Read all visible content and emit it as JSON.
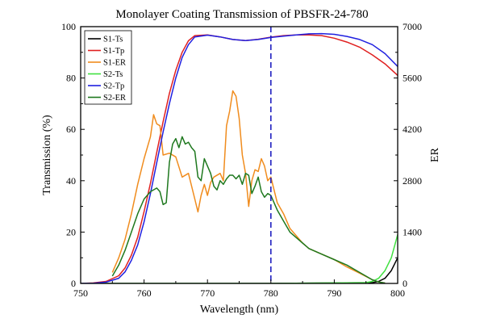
{
  "chart_data": {
    "type": "line",
    "title": "Monolayer Coating Transmission of PBSFR-24-780",
    "xlabel": "Wavelength (nm)",
    "ylabel": "Transmission (%)",
    "y2label": "ER",
    "xlim": [
      750,
      800
    ],
    "ylim": [
      0,
      100
    ],
    "y2lim": [
      0,
      7000
    ],
    "xticks": [
      "750",
      "760",
      "770",
      "780",
      "790",
      "800"
    ],
    "yticks": [
      "0",
      "20",
      "40",
      "60",
      "80",
      "100"
    ],
    "y2ticks": [
      "0",
      "1400",
      "2800",
      "4200",
      "5600",
      "7000"
    ],
    "grid": false,
    "legend_position": "top-left",
    "vline": {
      "x": 780,
      "color": "#2020c0",
      "style": "dashed"
    },
    "series": [
      {
        "name": "S1-Ts",
        "axis": "left",
        "color": "#000000",
        "x": [
          750,
          780,
          796,
          797,
          798,
          799,
          800
        ],
        "y": [
          0,
          0,
          0.3,
          0.8,
          2,
          5,
          10
        ]
      },
      {
        "name": "S1-Tp",
        "axis": "left",
        "color": "#e02020",
        "x": [
          750,
          752,
          754,
          756,
          757,
          758,
          759,
          760,
          761,
          762,
          763,
          764,
          765,
          766,
          767,
          768,
          770,
          772,
          774,
          776,
          778,
          780,
          782,
          784,
          786,
          788,
          790,
          792,
          794,
          796,
          798,
          800
        ],
        "y": [
          0,
          0.2,
          0.8,
          3,
          6,
          11,
          18,
          28,
          39,
          51,
          63,
          74,
          83,
          90,
          94.5,
          96.5,
          96.8,
          96,
          95,
          94.6,
          95.1,
          95.9,
          96.5,
          96.8,
          96.8,
          96.5,
          95.5,
          94,
          92,
          89,
          85.5,
          81
        ]
      },
      {
        "name": "S1-ER",
        "axis": "right",
        "color": "#f08c1e",
        "x": [
          755,
          756,
          757,
          758,
          759,
          760,
          761,
          761.5,
          762,
          762.5,
          763,
          764,
          765,
          766,
          767,
          768,
          768.5,
          769,
          769.5,
          770,
          770.5,
          771,
          772,
          772.5,
          773,
          773.5,
          774,
          774.5,
          775,
          775.5,
          776,
          776.5,
          777,
          777.5,
          778,
          778.5,
          779,
          779.5,
          780,
          781,
          782,
          783,
          784,
          785,
          786,
          788,
          790,
          792,
          794,
          796,
          797,
          798
        ],
        "y": [
          300,
          700,
          1200,
          1900,
          2700,
          3400,
          4000,
          4600,
          4350,
          4300,
          3500,
          3550,
          3450,
          2900,
          3000,
          2300,
          1950,
          2400,
          2700,
          2400,
          2750,
          2900,
          3000,
          2800,
          4300,
          4700,
          5250,
          5100,
          4500,
          3500,
          3000,
          2100,
          2800,
          3100,
          3050,
          3400,
          3200,
          2800,
          2900,
          2200,
          1900,
          1500,
          1300,
          1100,
          950,
          800,
          650,
          450,
          280,
          100,
          40,
          10
        ]
      },
      {
        "name": "S2-Ts",
        "axis": "left",
        "color": "#40e040",
        "x": [
          750,
          780,
          795,
          796,
          797,
          798,
          799,
          800
        ],
        "y": [
          0,
          0,
          0.3,
          0.8,
          2,
          5,
          10,
          19
        ]
      },
      {
        "name": "S2-Tp",
        "axis": "left",
        "color": "#2020e0",
        "x": [
          750,
          752,
          754,
          756,
          757,
          758,
          759,
          760,
          761,
          762,
          763,
          764,
          765,
          766,
          767,
          768,
          770,
          772,
          774,
          776,
          778,
          780,
          782,
          784,
          786,
          788,
          790,
          792,
          794,
          796,
          798,
          800
        ],
        "y": [
          0,
          0.1,
          0.5,
          2,
          4.5,
          9,
          15,
          24,
          35,
          47,
          59,
          70,
          80,
          88,
          93,
          96,
          96.7,
          96,
          95,
          94.6,
          95,
          95.8,
          96.3,
          96.8,
          97.2,
          97.3,
          97,
          96.2,
          95,
          93,
          89.5,
          84.5
        ]
      },
      {
        "name": "S2-ER",
        "axis": "right",
        "color": "#1e781e",
        "x": [
          755,
          756,
          757,
          758,
          759,
          760,
          761,
          762,
          762.5,
          763,
          763.5,
          764,
          764.5,
          765,
          765.5,
          766,
          766.5,
          767,
          767.5,
          768,
          768.5,
          769,
          769.5,
          770,
          770.5,
          771,
          771.5,
          772,
          772.5,
          773,
          773.5,
          774,
          774.5,
          775,
          775.5,
          776,
          776.5,
          777,
          777.5,
          778,
          778.5,
          779,
          779.5,
          780,
          781,
          782,
          783,
          784,
          785,
          786,
          788,
          790,
          792,
          794,
          796,
          797,
          798
        ],
        "y": [
          200,
          500,
          900,
          1400,
          1900,
          2300,
          2500,
          2600,
          2500,
          2150,
          2200,
          3300,
          3800,
          3950,
          3700,
          4000,
          3800,
          3850,
          3700,
          3600,
          2900,
          2800,
          3400,
          3200,
          3000,
          2650,
          2550,
          2800,
          2700,
          2850,
          2950,
          2950,
          2850,
          2950,
          2700,
          3000,
          2950,
          2450,
          2650,
          2900,
          2500,
          2350,
          2450,
          2400,
          2000,
          1700,
          1400,
          1250,
          1100,
          950,
          800,
          650,
          500,
          300,
          100,
          40,
          10
        ]
      }
    ]
  }
}
